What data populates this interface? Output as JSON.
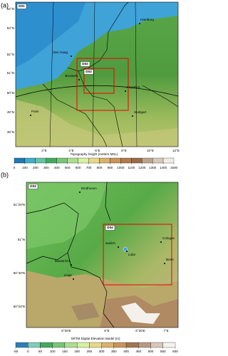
{
  "panels": [
    {
      "label": "(a)",
      "domain_labels": [
        "D01",
        "D02",
        "D03"
      ],
      "cities": [
        "Hamburg",
        "Den Haag",
        "Brussels",
        "Frankfurt",
        "Paris",
        "Stuttgart"
      ],
      "lat_labels": [
        "54°N",
        "53°N",
        "52°N",
        "51°N",
        "50°N",
        "49°N",
        "48°N"
      ],
      "lon_labels": [
        "2°E",
        "4°E",
        "6°E",
        "8°E",
        "10°E",
        "12°E"
      ],
      "colorbar": {
        "title": "Topography height  (meters MSL)",
        "ticks": [
          0,
          100,
          200,
          300,
          400,
          500,
          600,
          700,
          800,
          900,
          1000,
          1100,
          1200,
          1300,
          1400,
          1500
        ]
      }
    },
    {
      "label": "(b)",
      "domain_labels": [
        "D03",
        "D04"
      ],
      "cities": [
        "Eindhoven",
        "Cologne",
        "Juelich",
        "Lidar",
        "Maastricht",
        "Bonn",
        "Liege"
      ],
      "lat_labels": [
        "51°20'N",
        "51°N",
        "50°40'N",
        "50°20'N"
      ],
      "lon_labels": [
        "5°30'E",
        "6°E",
        "6°30'E",
        "7°E"
      ],
      "colorbar": {
        "title": "SRTM Digital Elevation Model  (m)",
        "ticks": [
          -50,
          0,
          50,
          100,
          150,
          200,
          250,
          300,
          350,
          400,
          450,
          500,
          550,
          600
        ]
      }
    }
  ]
}
